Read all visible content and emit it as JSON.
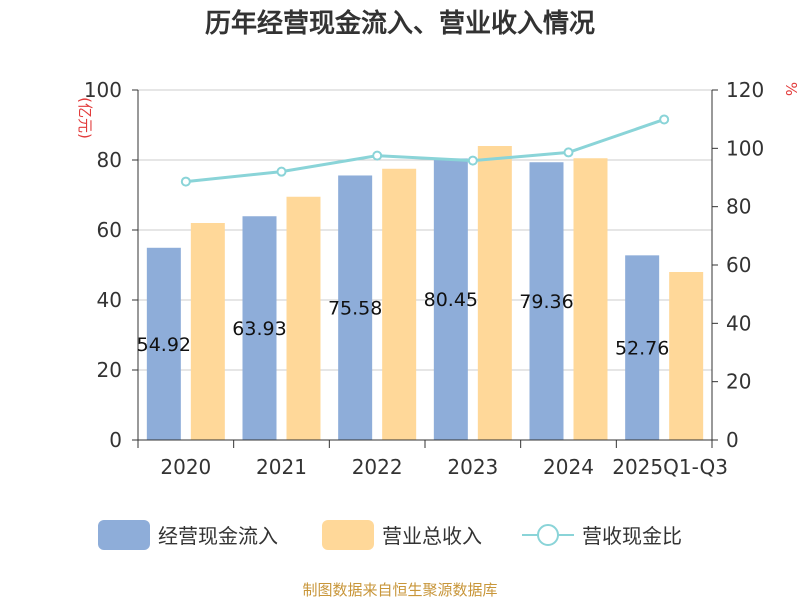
{
  "chart_data": {
    "type": "bar",
    "title": "历年经营现金流入、营业收入情况",
    "categories": [
      "2020",
      "2021",
      "2022",
      "2023",
      "2024",
      "2025Q1-Q3"
    ],
    "y_left_unit": "(亿元)",
    "y_right_unit": "%",
    "y_left_ticks": [
      "0",
      "20",
      "40",
      "60",
      "80",
      "100"
    ],
    "y_right_ticks": [
      "0",
      "20",
      "40",
      "60",
      "80",
      "100",
      "120"
    ],
    "ylim_left": [
      0,
      100
    ],
    "ylim_right": [
      0,
      120
    ],
    "grid": true,
    "legend_position": "bottom",
    "series": [
      {
        "name": "经营现金流入",
        "type": "bar",
        "axis": "left",
        "color": "#8eadd9",
        "values": [
          54.92,
          63.93,
          75.58,
          80.45,
          79.36,
          52.76
        ],
        "labels": [
          "54.92",
          "63.93",
          "75.58",
          "80.45",
          "79.36",
          "52.76"
        ]
      },
      {
        "name": "营业总收入",
        "type": "bar",
        "axis": "left",
        "color": "#ffd899",
        "values": [
          62,
          69.5,
          77.5,
          84,
          80.5,
          48
        ]
      },
      {
        "name": "营收现金比",
        "type": "line",
        "axis": "right",
        "color": "#8ad4d8",
        "values": [
          88.6,
          92.0,
          97.5,
          95.8,
          98.6,
          109.9
        ]
      }
    ]
  },
  "source_text": "制图数据来自恒生聚源数据库"
}
